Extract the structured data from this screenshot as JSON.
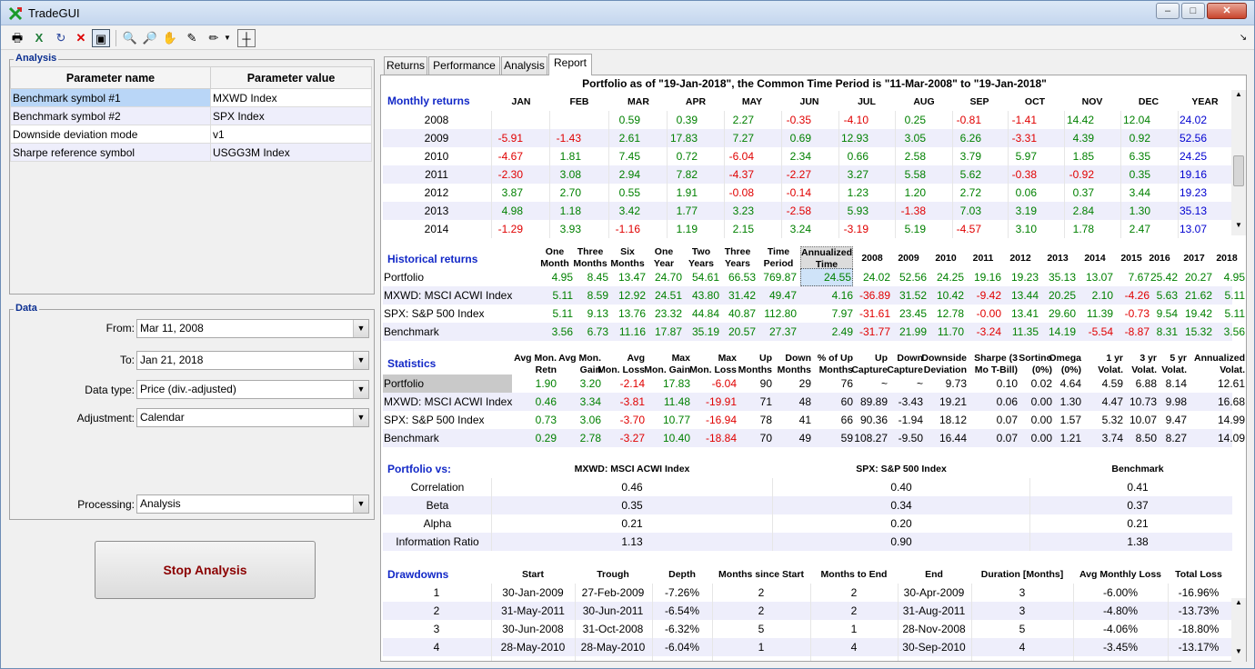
{
  "window": {
    "title": "TradeGUI"
  },
  "analysis": {
    "label": "Analysis",
    "header_name": "Parameter name",
    "header_value": "Parameter value",
    "rows": [
      {
        "name": "Benchmark symbol #1",
        "value": "MXWD Index"
      },
      {
        "name": "Benchmark symbol #2",
        "value": "SPX Index"
      },
      {
        "name": "Downside deviation mode",
        "value": "v1"
      },
      {
        "name": "Sharpe reference symbol",
        "value": "USGG3M Index"
      }
    ]
  },
  "data": {
    "label": "Data",
    "from_label": "From:",
    "from_value": "Mar 11, 2008",
    "to_label": "To:",
    "to_value": "Jan 21, 2018",
    "type_label": "Data type:",
    "type_value": "Price (div.-adjusted)",
    "adj_label": "Adjustment:",
    "adj_value": "Calendar",
    "proc_label": "Processing:",
    "proc_value": "Analysis"
  },
  "stop_button": "Stop Analysis",
  "tabs": [
    "Returns",
    "Performance",
    "Analysis",
    "Report"
  ],
  "report": {
    "title": "Portfolio as of \"19-Jan-2018\", the Common Time Period is \"11-Mar-2008\" to \"19-Jan-2018\"",
    "monthly": {
      "title": "Monthly returns",
      "headers": [
        "JAN",
        "FEB",
        "MAR",
        "APR",
        "MAY",
        "JUN",
        "JUL",
        "AUG",
        "SEP",
        "OCT",
        "NOV",
        "DEC",
        "YEAR"
      ],
      "rows": [
        [
          "2008",
          "",
          "",
          "0.59",
          "0.39",
          "2.27",
          "-0.35",
          "-4.10",
          "0.25",
          "-0.81",
          "-1.41",
          "14.42",
          "12.04",
          "24.02"
        ],
        [
          "2009",
          "-5.91",
          "-1.43",
          "2.61",
          "17.83",
          "7.27",
          "0.69",
          "12.93",
          "3.05",
          "6.26",
          "-3.31",
          "4.39",
          "0.92",
          "52.56"
        ],
        [
          "2010",
          "-4.67",
          "1.81",
          "7.45",
          "0.72",
          "-6.04",
          "2.34",
          "0.66",
          "2.58",
          "3.79",
          "5.97",
          "1.85",
          "6.35",
          "24.25"
        ],
        [
          "2011",
          "-2.30",
          "3.08",
          "2.94",
          "7.82",
          "-4.37",
          "-2.27",
          "3.27",
          "5.58",
          "5.62",
          "-0.38",
          "-0.92",
          "0.35",
          "19.16"
        ],
        [
          "2012",
          "3.87",
          "2.70",
          "0.55",
          "1.91",
          "-0.08",
          "-0.14",
          "1.23",
          "1.20",
          "2.72",
          "0.06",
          "0.37",
          "3.44",
          "19.23"
        ],
        [
          "2013",
          "4.98",
          "1.18",
          "3.42",
          "1.77",
          "3.23",
          "-2.58",
          "5.93",
          "-1.38",
          "7.03",
          "3.19",
          "2.84",
          "1.30",
          "35.13"
        ],
        [
          "2014",
          "-1.29",
          "3.93",
          "-1.16",
          "1.19",
          "2.15",
          "3.24",
          "-3.19",
          "5.19",
          "-4.57",
          "3.10",
          "1.78",
          "2.47",
          "13.07"
        ]
      ]
    },
    "historical": {
      "title": "Historical returns",
      "headers": [
        [
          "One",
          "Month"
        ],
        [
          "Three",
          "Months"
        ],
        [
          "Six",
          "Months"
        ],
        [
          "One",
          "Year"
        ],
        [
          "Two",
          "Years"
        ],
        [
          "Three",
          "Years"
        ],
        [
          "Time",
          "Period"
        ],
        [
          "Annualized",
          "Time Period"
        ],
        [
          "",
          "2008"
        ],
        [
          "",
          "2009"
        ],
        [
          "",
          "2010"
        ],
        [
          "",
          "2011"
        ],
        [
          "",
          "2012"
        ],
        [
          "",
          "2013"
        ],
        [
          "",
          "2014"
        ],
        [
          "",
          "2015"
        ],
        [
          "",
          "2016"
        ],
        [
          "",
          "2017"
        ],
        [
          "",
          "2018"
        ]
      ],
      "rows": [
        [
          "Portfolio",
          "4.95",
          "8.45",
          "13.47",
          "24.70",
          "54.61",
          "66.53",
          "769.87",
          "24.55",
          "24.02",
          "52.56",
          "24.25",
          "19.16",
          "19.23",
          "35.13",
          "13.07",
          "7.67",
          "25.42",
          "20.27",
          "4.95"
        ],
        [
          "MXWD: MSCI ACWI Index",
          "5.11",
          "8.59",
          "12.92",
          "24.51",
          "43.80",
          "31.42",
          "49.47",
          "4.16",
          "-36.89",
          "31.52",
          "10.42",
          "-9.42",
          "13.44",
          "20.25",
          "2.10",
          "-4.26",
          "5.63",
          "21.62",
          "5.11"
        ],
        [
          "SPX: S&P 500 Index",
          "5.11",
          "9.13",
          "13.76",
          "23.32",
          "44.84",
          "40.87",
          "112.80",
          "7.97",
          "-31.61",
          "23.45",
          "12.78",
          "-0.00",
          "13.41",
          "29.60",
          "11.39",
          "-0.73",
          "9.54",
          "19.42",
          "5.11"
        ],
        [
          "Benchmark",
          "3.56",
          "6.73",
          "11.16",
          "17.87",
          "35.19",
          "20.57",
          "27.37",
          "2.49",
          "-31.77",
          "21.99",
          "11.70",
          "-3.24",
          "11.35",
          "14.19",
          "-5.54",
          "-8.87",
          "8.31",
          "15.32",
          "3.56"
        ]
      ]
    },
    "statistics": {
      "title": "Statistics",
      "headers": [
        [
          "Avg Mon.",
          "Retn"
        ],
        [
          "Avg Mon.",
          "Gain"
        ],
        [
          "Avg",
          "Mon. Loss"
        ],
        [
          "Max",
          "Mon. Gain"
        ],
        [
          "Max",
          "Mon. Loss"
        ],
        [
          "Up",
          "Months"
        ],
        [
          "Down",
          "Months"
        ],
        [
          "% of Up",
          "Months"
        ],
        [
          "Up",
          "Capture"
        ],
        [
          "Down",
          "Capture"
        ],
        [
          "Downside",
          "Deviation"
        ],
        [
          "Sharpe (3",
          "Mo T-Bill)"
        ],
        [
          "Sortino",
          "(0%)"
        ],
        [
          "Omega",
          "(0%)"
        ],
        [
          "1 yr",
          "Volat."
        ],
        [
          "3 yr",
          "Volat."
        ],
        [
          "5 yr",
          "Volat."
        ],
        [
          "Annualized",
          "Volat."
        ]
      ],
      "rows": [
        [
          "Portfolio",
          "1.90",
          "3.20",
          "-2.14",
          "17.83",
          "-6.04",
          "90",
          "29",
          "76",
          "~",
          "~",
          "9.73",
          "0.10",
          "0.02",
          "4.64",
          "4.59",
          "6.88",
          "8.14",
          "12.61"
        ],
        [
          "MXWD: MSCI ACWI Index",
          "0.46",
          "3.34",
          "-3.81",
          "11.48",
          "-19.91",
          "71",
          "48",
          "60",
          "89.89",
          "-3.43",
          "19.21",
          "0.06",
          "0.00",
          "1.30",
          "4.47",
          "10.73",
          "9.98",
          "16.68"
        ],
        [
          "SPX: S&P 500 Index",
          "0.73",
          "3.06",
          "-3.70",
          "10.77",
          "-16.94",
          "78",
          "41",
          "66",
          "90.36",
          "-1.94",
          "18.12",
          "0.07",
          "0.00",
          "1.57",
          "5.32",
          "10.07",
          "9.47",
          "14.99"
        ],
        [
          "Benchmark",
          "0.29",
          "2.78",
          "-3.27",
          "10.40",
          "-18.84",
          "70",
          "49",
          "59",
          "108.27",
          "-9.50",
          "16.44",
          "0.07",
          "0.00",
          "1.21",
          "3.74",
          "8.50",
          "8.27",
          "14.09"
        ]
      ]
    },
    "vs": {
      "title": "Portfolio vs:",
      "headers": [
        "MXWD: MSCI ACWI Index",
        "SPX: S&P 500 Index",
        "Benchmark"
      ],
      "rows": [
        [
          "Correlation",
          "0.46",
          "0.40",
          "0.41"
        ],
        [
          "Beta",
          "0.35",
          "0.34",
          "0.37"
        ],
        [
          "Alpha",
          "0.21",
          "0.20",
          "0.21"
        ],
        [
          "Information Ratio",
          "1.13",
          "0.90",
          "1.38"
        ]
      ]
    },
    "drawdowns": {
      "title": "Drawdowns",
      "headers": [
        "Start",
        "Trough",
        "Depth",
        "Months since Start",
        "Months to End",
        "End",
        "Duration [Months]",
        "Avg Monthly Loss",
        "Total Loss"
      ],
      "rows": [
        [
          "1",
          "30-Jan-2009",
          "27-Feb-2009",
          "-7.26%",
          "2",
          "2",
          "30-Apr-2009",
          "3",
          "-6.00%",
          "-16.96%"
        ],
        [
          "2",
          "31-May-2011",
          "30-Jun-2011",
          "-6.54%",
          "2",
          "2",
          "31-Aug-2011",
          "3",
          "-4.80%",
          "-13.73%"
        ],
        [
          "3",
          "30-Jun-2008",
          "31-Oct-2008",
          "-6.32%",
          "5",
          "1",
          "28-Nov-2008",
          "5",
          "-4.06%",
          "-18.80%"
        ],
        [
          "4",
          "28-May-2010",
          "28-May-2010",
          "-6.04%",
          "1",
          "4",
          "30-Sep-2010",
          "4",
          "-3.45%",
          "-13.17%"
        ]
      ]
    }
  },
  "colors": {
    "positive": "#008000",
    "negative": "#e00000",
    "year_total": "#0000d0",
    "section_title": "#1228c7"
  }
}
